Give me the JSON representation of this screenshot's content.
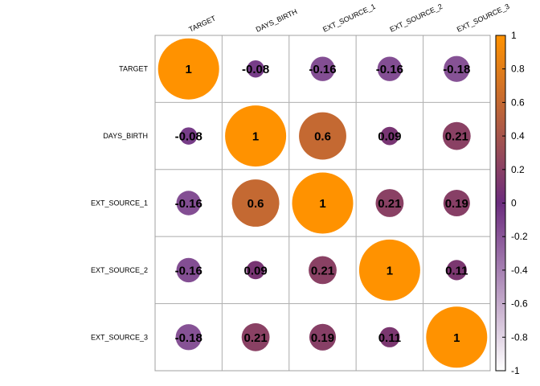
{
  "chart_data": {
    "type": "heatmap",
    "title": "",
    "variables": [
      "TARGET",
      "DAYS_BIRTH",
      "EXT_SOURCE_1",
      "EXT_SOURCE_2",
      "EXT_SOURCE_3"
    ],
    "matrix": [
      [
        1,
        -0.08,
        -0.16,
        -0.16,
        -0.18
      ],
      [
        -0.08,
        1,
        0.6,
        0.09,
        0.21
      ],
      [
        -0.16,
        0.6,
        1,
        0.21,
        0.19
      ],
      [
        -0.16,
        0.09,
        0.21,
        1,
        0.11
      ],
      [
        -0.18,
        0.21,
        0.19,
        0.11,
        1
      ]
    ],
    "value_labels": [
      [
        "1",
        "-0.08",
        "-0.16",
        "-0.16",
        "-0.18"
      ],
      [
        "-0.08",
        "1",
        "0.6",
        "0.09",
        "0.21"
      ],
      [
        "-0.16",
        "0.6",
        "1",
        "0.21",
        "0.19"
      ],
      [
        "-0.16",
        "0.09",
        "0.21",
        "1",
        "0.11"
      ],
      [
        "-0.18",
        "0.21",
        "0.19",
        "0.11",
        "1"
      ]
    ],
    "colorbar": {
      "range": [
        -1,
        1
      ],
      "ticks": [
        1,
        0.8,
        0.6,
        0.4,
        0.2,
        0,
        -0.2,
        -0.4,
        -0.6,
        -0.8,
        -1
      ],
      "tick_labels": [
        "1",
        "0.8",
        "0.6",
        "0.4",
        "0.2",
        "0",
        "-0.2",
        "-0.4",
        "-0.6",
        "-0.8",
        "-1"
      ],
      "colors": [
        "#FFFFFF",
        "#6B2C7E",
        "#FF9200"
      ]
    },
    "marker": "circle",
    "legend": "right"
  }
}
